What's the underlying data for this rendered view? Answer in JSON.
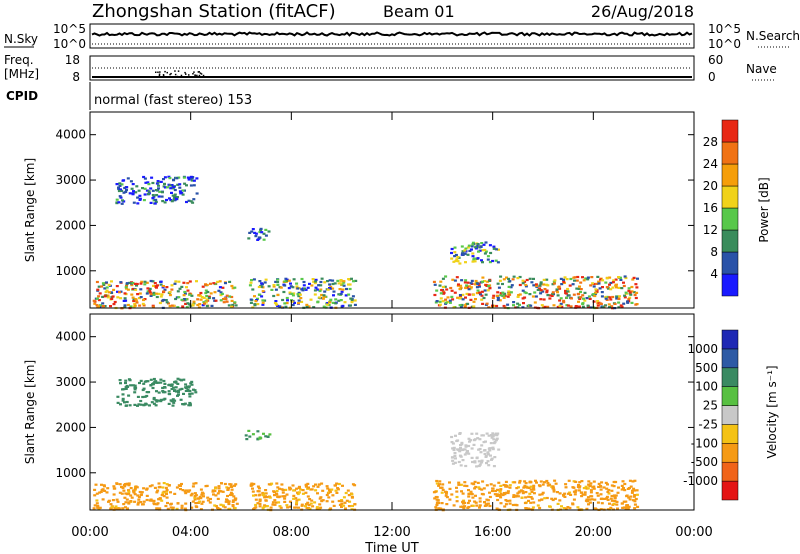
{
  "header": {
    "station": "Zhongshan Station (fitACF)",
    "beam": "Beam 01",
    "date": "26/Aug/2018"
  },
  "strips": {
    "nsky": {
      "label": "N.Sky",
      "tick_top": "10^5",
      "tick_bottom": "10^0",
      "right_label": "N.Search",
      "right_tick_top": "10^5",
      "right_tick_bottom": "10^0"
    },
    "freq": {
      "label_line1": "Freq.",
      "label_line2": "[MHz]",
      "tick_top": "18",
      "tick_bottom": "8",
      "right_label": "Nave",
      "right_tick_top": "60",
      "right_tick_bottom": "0"
    },
    "cpid": {
      "label": "CPID",
      "text": "normal (fast stereo) 153"
    }
  },
  "xaxis": {
    "title": "Time UT",
    "ticks": [
      "00:00",
      "04:00",
      "08:00",
      "12:00",
      "16:00",
      "20:00",
      "00:00"
    ]
  },
  "colors": {
    "power": [
      "#1a1aff",
      "#2a52a8",
      "#3a8c5c",
      "#58c84a",
      "#f0d21a",
      "#f59e0a",
      "#f07214",
      "#e82814"
    ],
    "velocity": [
      "#e41414",
      "#f0641a",
      "#f59a14",
      "#f4c214",
      "#c8c8c8",
      "#58c042",
      "#3a8a62",
      "#2d5aa5",
      "#1e28b4"
    ]
  },
  "chart_data": [
    {
      "type": "heatmap",
      "title": "",
      "xlabel": "",
      "ylabel": "Slant Range [km]",
      "xlim": [
        "00:00",
        "24:00"
      ],
      "ylim": [
        180,
        4500
      ],
      "yticks": [
        1000,
        2000,
        3000,
        4000
      ],
      "colorbar": {
        "label": "Power [dB]",
        "ticks": [
          "4",
          "8",
          "12",
          "16",
          "20",
          "24",
          "28"
        ],
        "range": [
          0,
          32
        ]
      },
      "regions": [
        {
          "t0": 0.1,
          "t1": 5.8,
          "r0": 200,
          "r1": 800,
          "level": 18
        },
        {
          "t0": 6.3,
          "t1": 10.5,
          "r0": 200,
          "r1": 850,
          "level": 12
        },
        {
          "t0": 13.6,
          "t1": 21.7,
          "r0": 200,
          "r1": 900,
          "level": 20
        },
        {
          "t0": 14.3,
          "t1": 16.2,
          "r0": 1150,
          "r1": 1650,
          "level": 10
        },
        {
          "t0": 6.1,
          "t1": 7.1,
          "r0": 1700,
          "r1": 1950,
          "level": 7
        },
        {
          "t0": 1.0,
          "t1": 4.2,
          "r0": 2500,
          "r1": 3100,
          "level": 6
        }
      ]
    },
    {
      "type": "heatmap",
      "title": "",
      "xlabel": "Time UT",
      "ylabel": "Slant Range [km]",
      "xlim": [
        "00:00",
        "24:00"
      ],
      "ylim": [
        180,
        4500
      ],
      "yticks": [
        1000,
        2000,
        3000,
        4000
      ],
      "colorbar": {
        "label": "Velocity [m s⁻¹]",
        "ticks": [
          "-1000",
          "-500",
          "-100",
          "-25",
          "25",
          "100",
          "500",
          "1000"
        ],
        "range": [
          -1250,
          1250
        ]
      },
      "regions": [
        {
          "t0": 0.1,
          "t1": 5.8,
          "r0": 200,
          "r1": 800,
          "level": -200
        },
        {
          "t0": 6.3,
          "t1": 10.5,
          "r0": 200,
          "r1": 800,
          "level": -150
        },
        {
          "t0": 13.6,
          "t1": 21.7,
          "r0": 200,
          "r1": 850,
          "level": -200
        },
        {
          "t0": 14.3,
          "t1": 16.2,
          "r0": 1150,
          "r1": 1900,
          "level": 0
        },
        {
          "t0": 6.1,
          "t1": 7.1,
          "r0": 1750,
          "r1": 1950,
          "level": 100
        },
        {
          "t0": 1.0,
          "t1": 4.2,
          "r0": 2500,
          "r1": 3100,
          "level": 300
        }
      ]
    }
  ]
}
